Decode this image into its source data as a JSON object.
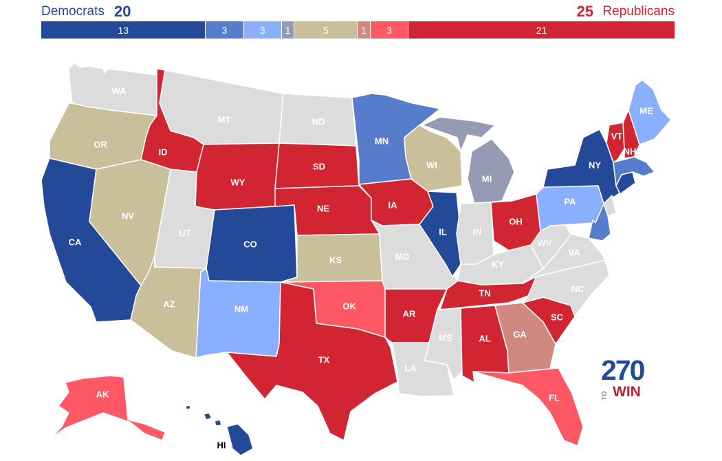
{
  "header": {
    "dem_label": "Democrats",
    "dem_count": "20",
    "rep_count": "25",
    "rep_label": "Republicans"
  },
  "bar_segments": [
    {
      "label": "13",
      "count": 13,
      "color": "#244999"
    },
    {
      "label": "3",
      "count": 3,
      "color": "#577ccc"
    },
    {
      "label": "3",
      "count": 3,
      "color": "#8aafff"
    },
    {
      "label": "1",
      "count": 1,
      "color": "#949bb3"
    },
    {
      "label": "5",
      "count": 5,
      "color": "#c9c09b"
    },
    {
      "label": "1",
      "count": 1,
      "color": "#cf8980"
    },
    {
      "label": "3",
      "count": 3,
      "color": "#ff5865"
    },
    {
      "label": "21",
      "count": 21,
      "color": "#d22532"
    }
  ],
  "ratings": {
    "safe_d": "#244999",
    "likely_d": "#577ccc",
    "lean_d": "#8aafff",
    "tilt_d": "#949bb3",
    "tossup": "#c9c09b",
    "tilt_r": "#cf8980",
    "lean_r": "#ff5865",
    "safe_r": "#d22532",
    "no_race": "#dcdcdc"
  },
  "states": [
    {
      "abbr": "WA",
      "rating": "no_race"
    },
    {
      "abbr": "OR",
      "rating": "tossup"
    },
    {
      "abbr": "CA",
      "rating": "safe_d"
    },
    {
      "abbr": "ID",
      "rating": "safe_r"
    },
    {
      "abbr": "NV",
      "rating": "tossup"
    },
    {
      "abbr": "AZ",
      "rating": "tossup"
    },
    {
      "abbr": "UT",
      "rating": "no_race"
    },
    {
      "abbr": "MT",
      "rating": "no_race"
    },
    {
      "abbr": "WY",
      "rating": "safe_r"
    },
    {
      "abbr": "CO",
      "rating": "safe_d"
    },
    {
      "abbr": "NM",
      "rating": "lean_d"
    },
    {
      "abbr": "ND",
      "rating": "no_race"
    },
    {
      "abbr": "SD",
      "rating": "safe_r"
    },
    {
      "abbr": "NE",
      "rating": "safe_r"
    },
    {
      "abbr": "KS",
      "rating": "tossup"
    },
    {
      "abbr": "OK",
      "rating": "lean_r"
    },
    {
      "abbr": "TX",
      "rating": "safe_r"
    },
    {
      "abbr": "MN",
      "rating": "likely_d"
    },
    {
      "abbr": "IA",
      "rating": "safe_r"
    },
    {
      "abbr": "MO",
      "rating": "no_race"
    },
    {
      "abbr": "AR",
      "rating": "safe_r"
    },
    {
      "abbr": "LA",
      "rating": "no_race"
    },
    {
      "abbr": "WI",
      "rating": "tossup"
    },
    {
      "abbr": "IL",
      "rating": "safe_d"
    },
    {
      "abbr": "MI",
      "rating": "tilt_d"
    },
    {
      "abbr": "IN",
      "rating": "no_race"
    },
    {
      "abbr": "OH",
      "rating": "safe_r"
    },
    {
      "abbr": "KY",
      "rating": "no_race"
    },
    {
      "abbr": "TN",
      "rating": "safe_r"
    },
    {
      "abbr": "MS",
      "rating": "no_race"
    },
    {
      "abbr": "AL",
      "rating": "safe_r"
    },
    {
      "abbr": "GA",
      "rating": "tilt_r"
    },
    {
      "abbr": "FL",
      "rating": "lean_r"
    },
    {
      "abbr": "SC",
      "rating": "safe_r"
    },
    {
      "abbr": "NC",
      "rating": "no_race"
    },
    {
      "abbr": "VA",
      "rating": "no_race"
    },
    {
      "abbr": "WV",
      "rating": "no_race"
    },
    {
      "abbr": "PA",
      "rating": "lean_d"
    },
    {
      "abbr": "NY",
      "rating": "safe_d"
    },
    {
      "abbr": "VT",
      "rating": "safe_r"
    },
    {
      "abbr": "NH",
      "rating": "safe_r"
    },
    {
      "abbr": "ME",
      "rating": "lean_d"
    },
    {
      "abbr": "AK",
      "rating": "lean_r"
    },
    {
      "abbr": "HI",
      "rating": "safe_d"
    }
  ],
  "logo": {
    "number": "270",
    "to": "TO",
    "win": "WIN"
  }
}
